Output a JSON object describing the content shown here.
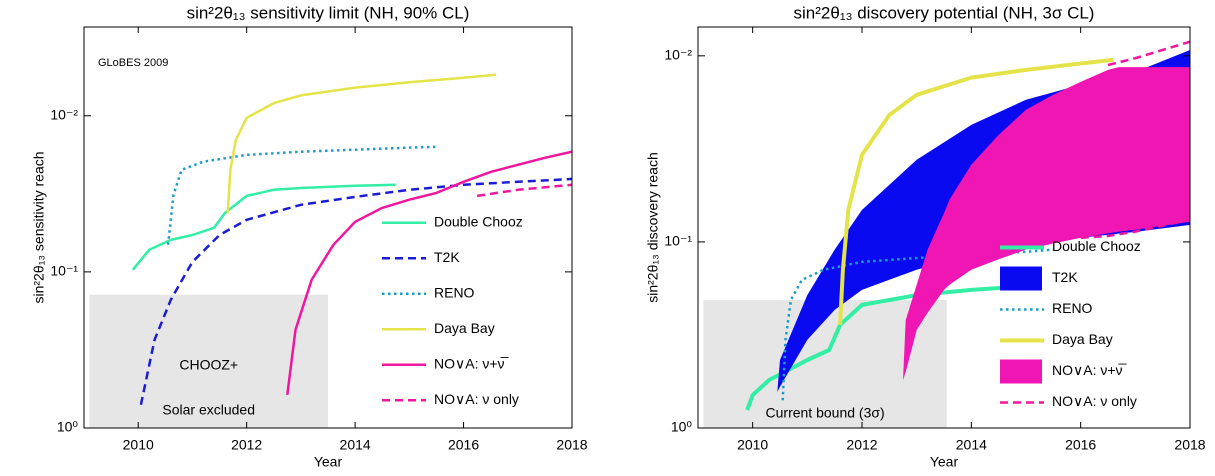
{
  "chart_data": [
    {
      "type": "line",
      "title": "sin²2θ₁₃ sensitivity limit (NH, 90% CL)",
      "xlabel": "Year",
      "ylabel": "sin²2θ₁₃ sensitivity reach",
      "xlim": [
        2009,
        2018
      ],
      "xticks": [
        2010,
        2012,
        2014,
        2016,
        2018
      ],
      "ylim": [
        1,
        0.0027
      ],
      "log_y": true,
      "yticks": [
        {
          "value": 1,
          "label": "10⁰"
        },
        {
          "value": 0.1,
          "label": "10⁻¹"
        },
        {
          "value": 0.01,
          "label": "10⁻²"
        }
      ],
      "legend": "lower right",
      "annotations": [
        "GLoBES 2009"
      ],
      "regions": [
        {
          "x": [
            2009.1,
            2013.5
          ],
          "y": [
            1,
            0.14
          ],
          "color": "#e6e6e6",
          "labels": [
            "CHOOZ+",
            "Solar excluded"
          ]
        }
      ],
      "series": [
        {
          "name": "Double Chooz",
          "kind": "line",
          "color": "#33eea5",
          "width": 2.5,
          "dash": "solid",
          "x": [
            2009.9,
            2010.2,
            2010.6,
            2011,
            2011.4,
            2011.6,
            2012,
            2012.5,
            2013,
            2014,
            2014.75
          ],
          "values": [
            0.097,
            0.0723,
            0.0624,
            0.058,
            0.0522,
            0.0419,
            0.0326,
            0.0298,
            0.029,
            0.0281,
            0.0277
          ]
        },
        {
          "name": "T2K",
          "kind": "line",
          "color": "#1c1cd6",
          "width": 2.5,
          "dash": "dashed",
          "x": [
            2010.05,
            2010.3,
            2010.6,
            2011,
            2011.5,
            2012,
            2013,
            2014,
            2015,
            2016,
            2017,
            2018
          ],
          "values": [
            0.71,
            0.273,
            0.151,
            0.0863,
            0.058,
            0.0464,
            0.0372,
            0.0331,
            0.0298,
            0.0277,
            0.0265,
            0.0254
          ]
        },
        {
          "name": "RENO",
          "kind": "line",
          "color": "#1a9ec8",
          "width": 2.5,
          "dash": "dotted",
          "x": [
            2010.55,
            2010.6,
            2010.65,
            2010.8,
            2011.2,
            2012,
            2013,
            2014,
            2015,
            2015.5
          ],
          "values": [
            0.067,
            0.0464,
            0.0321,
            0.0222,
            0.0197,
            0.0178,
            0.017,
            0.0165,
            0.016,
            0.0158
          ]
        },
        {
          "name": "Daya Bay",
          "kind": "line",
          "color": "#e4e44a",
          "width": 2.5,
          "dash": "solid",
          "x": [
            2011.65,
            2011.7,
            2011.8,
            2012,
            2012.5,
            2013,
            2014,
            2015,
            2016,
            2016.6
          ],
          "values": [
            0.042,
            0.0222,
            0.0143,
            0.0103,
            0.0083,
            0.0074,
            0.0066,
            0.0061,
            0.0057,
            0.00546
          ]
        },
        {
          "name": "NO∨A: ν+ν̅",
          "kind": "line",
          "color": "#f0169e",
          "width": 2.5,
          "dash": "solid",
          "x": [
            2012.75,
            2012.9,
            2013.2,
            2013.6,
            2014,
            2014.5,
            2015,
            2015.5,
            2016,
            2016.5,
            2017,
            2017.5,
            2018
          ],
          "values": [
            0.614,
            0.235,
            0.112,
            0.0671,
            0.0478,
            0.0389,
            0.0345,
            0.0312,
            0.0265,
            0.0229,
            0.0206,
            0.0186,
            0.017
          ]
        },
        {
          "name": "NO∨A: ν only",
          "kind": "line",
          "color": "#f0169e",
          "width": 2.5,
          "dash": "dashed",
          "x": [
            2016.25,
            2017,
            2018
          ],
          "values": [
            0.0326,
            0.0298,
            0.0277
          ]
        }
      ]
    },
    {
      "type": "line",
      "title": "sin²2θ₁₃ discovery potential (NH, 3σ CL)",
      "xlabel": "Year",
      "ylabel": "sin²2θ₁₃ discovery reach",
      "xlim": [
        2009,
        2018
      ],
      "xticks": [
        2010,
        2012,
        2014,
        2016,
        2018
      ],
      "ylim": [
        1,
        0.007
      ],
      "log_y": true,
      "yticks": [
        {
          "value": 1,
          "label": "10⁰"
        },
        {
          "value": 0.1,
          "label": "10⁻¹"
        },
        {
          "value": 0.01,
          "label": "10⁻²"
        }
      ],
      "legend": "lower right",
      "regions": [
        {
          "x": [
            2009.1,
            2013.55
          ],
          "y": [
            1,
            0.205
          ],
          "color": "#e6e6e6",
          "labels": [
            "Current bound (3σ)"
          ]
        }
      ],
      "series": [
        {
          "name": "Double Chooz",
          "kind": "line",
          "color": "#33eea5",
          "width": 4,
          "dash": "solid",
          "x": [
            2009.9,
            2010,
            2010.3,
            2011,
            2011.4,
            2011.6,
            2012,
            2013,
            2014,
            2014.75
          ],
          "values": [
            0.8,
            0.665,
            0.552,
            0.431,
            0.381,
            0.279,
            0.218,
            0.193,
            0.181,
            0.175
          ]
        },
        {
          "name": "T2K",
          "kind": "band",
          "color": "#0a0af0",
          "x": [
            2010.45,
            2010.5,
            2011,
            2011.5,
            2012,
            2013,
            2014,
            2015,
            2016,
            2017,
            2018
          ],
          "lower": [
            0.64,
            0.431,
            0.193,
            0.11,
            0.0673,
            0.0362,
            0.0235,
            0.0172,
            0.0143,
            0.0122,
            0.0093
          ],
          "upper": [
            0.64,
            0.6,
            0.336,
            0.232,
            0.181,
            0.141,
            0.117,
            0.104,
            0.095,
            0.0883,
            0.081
          ]
        },
        {
          "name": "RENO",
          "kind": "line",
          "color": "#1a9ec8",
          "width": 2.5,
          "dash": "dotted",
          "x": [
            2010.55,
            2010.6,
            2010.7,
            2010.9,
            2011.3,
            2012,
            2013,
            2014,
            2015,
            2015.5
          ],
          "values": [
            0.71,
            0.336,
            0.205,
            0.16,
            0.141,
            0.128,
            0.122,
            0.117,
            0.113,
            0.11
          ]
        },
        {
          "name": "Daya Bay",
          "kind": "line",
          "color": "#e4e44a",
          "width": 4,
          "dash": "solid",
          "x": [
            2011.6,
            2011.65,
            2011.75,
            2012,
            2012.5,
            2013,
            2014,
            2015,
            2016,
            2016.6
          ],
          "values": [
            0.279,
            0.141,
            0.0673,
            0.034,
            0.0208,
            0.0162,
            0.0131,
            0.0119,
            0.011,
            0.0105
          ]
        },
        {
          "name": "NO∨A: ν+ν̅",
          "kind": "band",
          "color": "#f016b4",
          "x": [
            2012.75,
            2012.8,
            2013,
            2013.2,
            2013.5,
            2013.6,
            2014,
            2014.5,
            2015,
            2015.5,
            2016,
            2016.5,
            2016.7,
            2017,
            2018
          ],
          "lower": [
            0.552,
            0.263,
            0.17,
            0.11,
            0.07,
            0.0594,
            0.0385,
            0.0266,
            0.0195,
            0.0162,
            0.0138,
            0.0119,
            0.0115,
            0.0115,
            0.0115
          ],
          "upper": [
            0.552,
            0.5,
            0.297,
            0.24,
            0.181,
            0.17,
            0.141,
            0.124,
            0.11,
            0.102,
            0.095,
            0.09,
            0.088,
            0.086,
            0.078
          ]
        },
        {
          "name": "NO∨A: ν only",
          "kind": "edges",
          "color": "#f0169e",
          "width": 2.5,
          "dash": "dashed",
          "x": [
            2016,
            2016.5,
            2017,
            2018
          ],
          "lower": [
            null,
            0.0112,
            0.0103,
            0.0084
          ],
          "upper": [
            0.095,
            0.093,
            0.088,
            0.076
          ]
        }
      ]
    }
  ]
}
